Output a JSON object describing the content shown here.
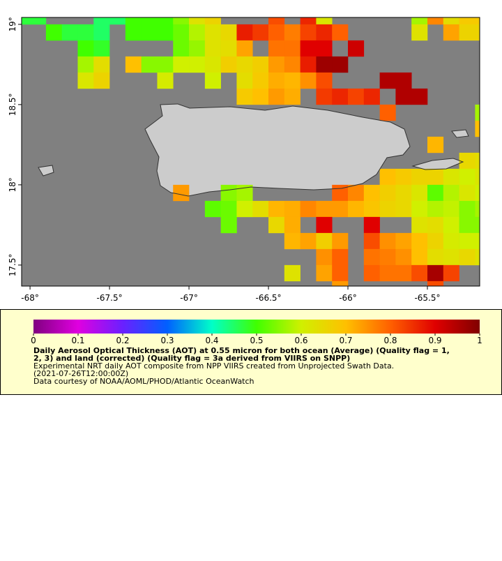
{
  "chart_data": {
    "type": "map",
    "xlim": [
      -68.053,
      -65.171
    ],
    "ylim": [
      17.369,
      19.043
    ],
    "xticks": [
      {
        "value": -68,
        "label": "-68°"
      },
      {
        "value": -67.5,
        "label": "-67.5°"
      },
      {
        "value": -67,
        "label": "-67°"
      },
      {
        "value": -66.5,
        "label": "-66.5°"
      },
      {
        "value": -66,
        "label": "-66°"
      },
      {
        "value": -65.5,
        "label": "-65.5°"
      }
    ],
    "yticks": [
      {
        "value": 17.5,
        "label": "17.5°"
      },
      {
        "value": 18,
        "label": "18°"
      },
      {
        "value": 18.5,
        "label": "18.5°"
      },
      {
        "value": 19,
        "label": "19°"
      }
    ],
    "x": [
      -68.05,
      -67.95,
      -67.85,
      -67.75,
      -67.65,
      -67.55,
      -67.45,
      -67.35,
      -67.25,
      -67.15,
      -67.05,
      -66.95,
      -66.85,
      -66.75,
      -66.65,
      -66.55,
      -66.45,
      -66.35,
      -66.25,
      -66.15,
      -66.05,
      -65.95,
      -65.85,
      -65.75,
      -65.65,
      -65.55,
      -65.45,
      -65.35,
      -65.25,
      -65.15
    ],
    "y": [
      19.05,
      18.95,
      18.85,
      18.75,
      18.65,
      18.55,
      18.45,
      18.35,
      18.25,
      18.15,
      18.05,
      17.95,
      17.85,
      17.75,
      17.65,
      17.55,
      17.45,
      17.35
    ],
    "values": [
      [
        0.47,
        0.47,
        null,
        null,
        null,
        0.45,
        0.45,
        0.5,
        0.5,
        0.5,
        0.55,
        0.63,
        0.66,
        null,
        null,
        null,
        0.82,
        null,
        0.86,
        0.62,
        null,
        null,
        null,
        null,
        null,
        0.57,
        0.76,
        0.64,
        0.68,
        0.68
      ],
      [
        null,
        null,
        0.5,
        0.47,
        0.47,
        0.45,
        null,
        0.5,
        0.5,
        0.5,
        0.53,
        0.58,
        0.63,
        0.65,
        0.87,
        0.84,
        0.8,
        0.77,
        0.83,
        0.86,
        0.8,
        null,
        null,
        null,
        null,
        0.63,
        null,
        0.73,
        0.66,
        0.66
      ],
      [
        null,
        null,
        null,
        null,
        0.5,
        0.48,
        null,
        null,
        null,
        null,
        0.53,
        0.56,
        0.63,
        0.64,
        0.73,
        null,
        0.78,
        0.78,
        0.9,
        0.9,
        null,
        0.92,
        null,
        null,
        null,
        null,
        null,
        null,
        null,
        null
      ],
      [
        null,
        null,
        null,
        null,
        0.57,
        0.64,
        null,
        0.7,
        0.55,
        0.55,
        0.6,
        0.6,
        0.62,
        0.67,
        0.65,
        0.67,
        0.74,
        0.76,
        0.87,
        0.97,
        0.97,
        null,
        null,
        null,
        null,
        null,
        null,
        null,
        null,
        null
      ],
      [
        null,
        null,
        null,
        null,
        0.62,
        0.66,
        null,
        null,
        null,
        0.61,
        null,
        null,
        0.6,
        null,
        0.64,
        0.68,
        0.72,
        0.71,
        0.75,
        0.82,
        null,
        null,
        null,
        0.95,
        0.95,
        null,
        null,
        null,
        null,
        null
      ],
      [
        null,
        null,
        null,
        null,
        null,
        null,
        null,
        null,
        null,
        null,
        null,
        null,
        null,
        null,
        0.68,
        0.7,
        0.74,
        0.72,
        null,
        0.84,
        0.86,
        0.83,
        0.86,
        null,
        0.95,
        0.95,
        null,
        null,
        null,
        null
      ],
      [
        null,
        null,
        null,
        null,
        null,
        null,
        null,
        null,
        null,
        null,
        null,
        null,
        null,
        null,
        null,
        null,
        null,
        null,
        null,
        null,
        null,
        null,
        null,
        0.8,
        null,
        null,
        null,
        null,
        null,
        0.57
      ],
      [
        null,
        null,
        null,
        null,
        null,
        null,
        null,
        null,
        null,
        null,
        null,
        null,
        null,
        null,
        null,
        null,
        null,
        null,
        null,
        null,
        null,
        null,
        null,
        null,
        null,
        null,
        null,
        null,
        null,
        0.7
      ],
      [
        null,
        null,
        null,
        null,
        null,
        null,
        null,
        null,
        null,
        null,
        null,
        null,
        null,
        null,
        null,
        null,
        null,
        null,
        null,
        null,
        null,
        null,
        null,
        null,
        null,
        null,
        0.71,
        null,
        null,
        null
      ],
      [
        null,
        null,
        null,
        null,
        null,
        null,
        null,
        null,
        null,
        null,
        null,
        null,
        null,
        null,
        null,
        null,
        null,
        null,
        null,
        null,
        null,
        null,
        null,
        null,
        null,
        null,
        null,
        null,
        0.65,
        0.64
      ],
      [
        null,
        null,
        null,
        null,
        null,
        null,
        null,
        null,
        null,
        null,
        null,
        null,
        null,
        null,
        null,
        null,
        null,
        null,
        null,
        null,
        null,
        null,
        null,
        0.7,
        0.68,
        0.66,
        0.66,
        0.62,
        0.6,
        0.62
      ],
      [
        null,
        null,
        null,
        null,
        null,
        null,
        null,
        null,
        null,
        null,
        0.74,
        null,
        null,
        0.55,
        0.57,
        null,
        null,
        null,
        null,
        null,
        0.8,
        0.76,
        0.7,
        0.67,
        0.65,
        0.62,
        0.52,
        0.58,
        0.62,
        0.6
      ],
      [
        null,
        null,
        null,
        null,
        null,
        null,
        null,
        null,
        null,
        null,
        null,
        null,
        0.52,
        0.53,
        0.6,
        0.64,
        0.71,
        0.72,
        0.76,
        0.74,
        0.74,
        0.71,
        0.69,
        0.66,
        0.65,
        0.6,
        0.58,
        0.59,
        0.55,
        0.57
      ],
      [
        null,
        null,
        null,
        null,
        null,
        null,
        null,
        null,
        null,
        null,
        null,
        null,
        null,
        0.53,
        null,
        null,
        0.65,
        0.72,
        null,
        0.9,
        null,
        null,
        0.9,
        null,
        null,
        0.63,
        0.64,
        0.6,
        0.55,
        0.55
      ],
      [
        null,
        null,
        null,
        null,
        null,
        null,
        null,
        null,
        null,
        null,
        null,
        null,
        null,
        null,
        null,
        null,
        null,
        0.71,
        0.73,
        0.67,
        0.74,
        null,
        0.82,
        0.75,
        0.73,
        0.7,
        0.66,
        0.61,
        0.6,
        0.6
      ],
      [
        null,
        null,
        null,
        null,
        null,
        null,
        null,
        null,
        null,
        null,
        null,
        null,
        null,
        null,
        null,
        null,
        null,
        null,
        null,
        0.75,
        0.8,
        null,
        0.78,
        0.77,
        0.75,
        0.7,
        0.64,
        0.63,
        0.65,
        0.63
      ],
      [
        null,
        null,
        null,
        null,
        null,
        null,
        null,
        null,
        null,
        null,
        null,
        null,
        null,
        null,
        null,
        null,
        null,
        0.63,
        null,
        0.73,
        0.8,
        null,
        0.8,
        0.78,
        0.78,
        0.82,
        0.96,
        0.83,
        null,
        null
      ],
      [
        null,
        null,
        null,
        null,
        null,
        null,
        null,
        null,
        null,
        null,
        null,
        null,
        null,
        null,
        null,
        null,
        null,
        null,
        null,
        null,
        0.74,
        null,
        null,
        null,
        null,
        null,
        0.82,
        null,
        null,
        null
      ]
    ],
    "colormap": [
      "#800080",
      "#e000e0",
      "#6a20ff",
      "#0060ff",
      "#00ffc8",
      "#40ff00",
      "#d0f000",
      "#ffc000",
      "#ff6000",
      "#e00000",
      "#800000"
    ],
    "colorbar_lim": [
      0,
      1
    ],
    "colorbar_ticks": [
      0,
      0.1,
      0.2,
      0.3,
      0.4,
      0.5,
      0.6,
      0.7,
      0.8,
      0.9,
      1
    ],
    "legend_title": [
      "Daily Aerosol Optical Thickness (AOT) at 0.55 micron for both ocean (Average) (Quality flag = 1,",
      "2, 3) and land (corrected) (Quality flag = 3a derived from VIIRS on SNPP)"
    ],
    "notes": [
      "Experimental NRT daily AOT composite from NPP VIIRS created from Unprojected Swath Data.",
      "(2021-07-26T12:00:00Z)",
      "Data courtesy of NOAA/AOML/PHOD/Atlantic OceanWatch"
    ]
  }
}
